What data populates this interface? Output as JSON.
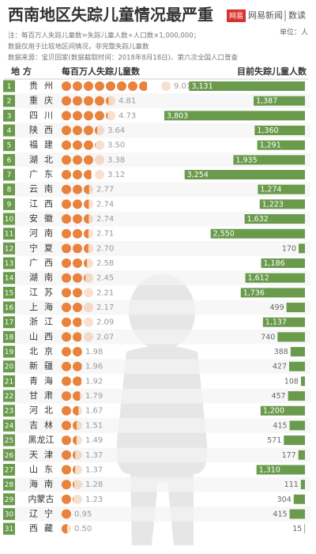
{
  "chart_data": {
    "type": "dotbar",
    "title": "西南地区失踪儿童情况最严重",
    "brand": "网易新闻",
    "brand_icon": "网易",
    "brand_section": "数读",
    "unit": "单位：人",
    "notes": [
      "注：每百万人失踪儿童数=失踪儿童人数÷人口数×1,000,000；",
      "数据仅用于比较地区间情况，非完整失踪儿童数",
      "数据来源：宝贝回家(数据截取时间：2018年8月18日)、第六次全国人口普查"
    ],
    "category_header": "地 方",
    "ranks": [
      1,
      2,
      3,
      4,
      5,
      6,
      7,
      8,
      9,
      10,
      11,
      12,
      13,
      14,
      15,
      16,
      17,
      18,
      19,
      20,
      21,
      22,
      23,
      24,
      25,
      26,
      27,
      28,
      29,
      30,
      31
    ],
    "categories": [
      "贵州",
      "重庆",
      "四川",
      "陕西",
      "福建",
      "湖北",
      "广东",
      "云南",
      "江西",
      "安徽",
      "河南",
      "宁夏",
      "广西",
      "湖南",
      "江苏",
      "上海",
      "浙江",
      "山西",
      "北京",
      "新疆",
      "青海",
      "甘肃",
      "河北",
      "吉林",
      "黑龙江",
      "天津",
      "山东",
      "海南",
      "内蒙古",
      "辽宁",
      "西藏"
    ],
    "series": [
      {
        "name": "每百万人失踪儿童数",
        "color": "#e8823c",
        "values": [
          9.01,
          4.81,
          4.73,
          3.64,
          3.5,
          3.38,
          3.12,
          2.77,
          2.74,
          2.74,
          2.71,
          2.7,
          2.58,
          2.45,
          2.21,
          2.17,
          2.09,
          2.07,
          1.98,
          1.96,
          1.92,
          1.79,
          1.67,
          1.51,
          1.49,
          1.37,
          1.37,
          1.28,
          1.23,
          0.95,
          0.5
        ],
        "value_labels": [
          "9.01",
          "4.81",
          "4.73",
          "3.64",
          "3.50",
          "3.38",
          "3.12",
          "2.77",
          "2.74",
          "2.74",
          "2.71",
          "2.70",
          "2.58",
          "2.45",
          "2.21",
          "2.17",
          "2.09",
          "2.07",
          "1.98",
          "1.96",
          "1.92",
          "1.79",
          "1.67",
          "1.51",
          "1.49",
          "1.37",
          "1.37",
          "1.28",
          "1.23",
          "0.95",
          "0.50"
        ]
      },
      {
        "name": "目前失踪儿童人数",
        "color": "#6a9a4c",
        "values": [
          3131,
          1387,
          3803,
          1360,
          1291,
          1935,
          3254,
          1274,
          1223,
          1632,
          2550,
          170,
          1186,
          1612,
          1736,
          499,
          1137,
          740,
          388,
          427,
          108,
          457,
          1200,
          415,
          571,
          177,
          1310,
          111,
          304,
          415,
          15
        ],
        "value_labels": [
          "3,131",
          "1,387",
          "3,803",
          "1,360",
          "1,291",
          "1,935",
          "3,254",
          "1,274",
          "1,223",
          "1,632",
          "2,550",
          "170",
          "1,186",
          "1,612",
          "1,736",
          "499",
          "1,137",
          "740",
          "388",
          "427",
          "108",
          "457",
          "1,200",
          "415",
          "571",
          "177",
          "1,310",
          "111",
          "304",
          "415",
          "15"
        ]
      }
    ]
  }
}
